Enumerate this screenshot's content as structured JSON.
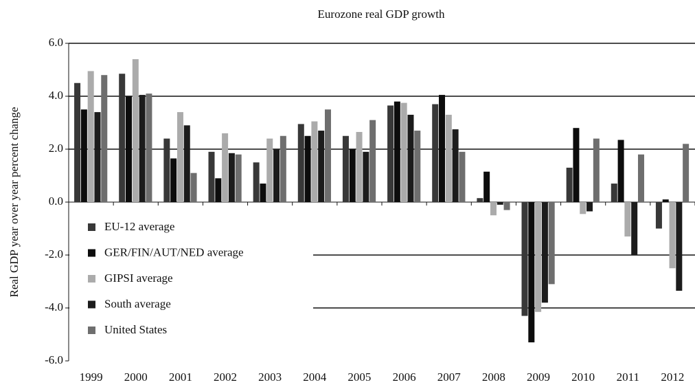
{
  "chart_data": {
    "type": "bar",
    "title": "Eurozone real GDP growth",
    "y_label": "Real GDP year over year percent change",
    "categories": [
      "1999",
      "2000",
      "2001",
      "2002",
      "2003",
      "2004",
      "2005",
      "2006",
      "2007",
      "2008",
      "2009",
      "2010",
      "2011",
      "2012"
    ],
    "series": [
      {
        "name": "EU-12 average",
        "color": "#383838",
        "values": [
          4.5,
          4.85,
          2.4,
          1.9,
          1.5,
          2.95,
          2.5,
          3.65,
          3.7,
          0.15,
          -4.3,
          1.3,
          0.7,
          -1.0
        ]
      },
      {
        "name": "GER/FIN/AUT/NED average",
        "color": "#0d0d0d",
        "values": [
          3.5,
          4.0,
          1.65,
          0.9,
          0.7,
          2.5,
          2.0,
          3.8,
          4.05,
          1.15,
          -5.3,
          2.8,
          2.35,
          0.1
        ]
      },
      {
        "name": "GIPSI average",
        "color": "#ababab",
        "values": [
          4.95,
          5.4,
          3.4,
          2.6,
          2.4,
          3.05,
          2.65,
          3.75,
          3.3,
          -0.5,
          -4.15,
          -0.45,
          -1.3,
          -2.5
        ]
      },
      {
        "name": "South average",
        "color": "#1c1c1c",
        "values": [
          3.4,
          4.05,
          2.9,
          1.85,
          2.0,
          2.7,
          1.9,
          3.3,
          2.75,
          -0.1,
          -3.8,
          -0.35,
          -2.0,
          -3.35
        ]
      },
      {
        "name": "United States",
        "color": "#6e6e6e",
        "values": [
          4.8,
          4.1,
          1.1,
          1.8,
          2.5,
          3.5,
          3.1,
          2.7,
          1.9,
          -0.3,
          -3.1,
          2.4,
          1.8,
          2.2
        ]
      }
    ],
    "ylim": [
      -6,
      6
    ],
    "yticks": [
      {
        "value": -6,
        "label": "-6.0"
      },
      {
        "value": -4,
        "label": "-4.0"
      },
      {
        "value": -2,
        "label": "-2.0"
      },
      {
        "value": 0,
        "label": "0.0"
      },
      {
        "value": 2,
        "label": "2.0"
      },
      {
        "value": 4,
        "label": "4.0"
      },
      {
        "value": 6,
        "label": "6.0"
      }
    ],
    "grid": true,
    "legend": "lower left"
  }
}
